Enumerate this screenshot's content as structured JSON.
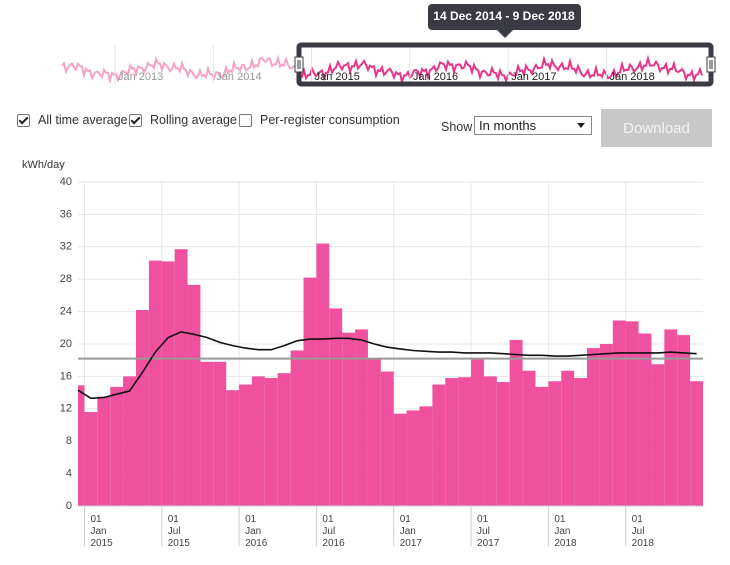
{
  "navigator": {
    "labels": [
      "Jan 2013",
      "Jan 2014",
      "Jan 2015",
      "Jan 2016",
      "Jan 2017",
      "Jan 2018"
    ],
    "range_label": "14 Dec 2014 - 9 Dec 2018"
  },
  "controls": {
    "checkboxes": [
      {
        "label": "All time average",
        "checked": true
      },
      {
        "label": "Rolling average",
        "checked": true
      },
      {
        "label": "Per-register consumption",
        "checked": false
      }
    ],
    "show_label": "Show",
    "show_value": "In months",
    "button": "Download"
  },
  "chart_data": {
    "type": "bar",
    "y_label": "kWh/day",
    "values": [
      14.9,
      11.6,
      13.5,
      14.7,
      16.0,
      24.2,
      30.3,
      30.2,
      31.7,
      27.3,
      17.8,
      17.8,
      14.3,
      15.0,
      16.0,
      15.8,
      16.4,
      19.2,
      28.2,
      32.4,
      24.4,
      21.4,
      21.8,
      18.1,
      16.6,
      11.4,
      11.8,
      12.3,
      15.0,
      15.8,
      15.9,
      18.1,
      16.0,
      15.3,
      20.5,
      16.7,
      14.7,
      15.4,
      16.7,
      15.8,
      19.5,
      20.0,
      22.9,
      22.8,
      21.3,
      17.5,
      21.8,
      21.1,
      15.4
    ],
    "color": "#ef519e",
    "rolling_average": [
      14.3,
      13.3,
      13.4,
      13.8,
      14.2,
      16.5,
      19.0,
      20.8,
      21.5,
      21.2,
      20.8,
      20.2,
      19.8,
      19.5,
      19.3,
      19.3,
      19.8,
      20.4,
      20.6,
      20.6,
      20.7,
      20.7,
      20.5,
      20.0,
      19.6,
      19.4,
      19.2,
      19.1,
      19.0,
      19.0,
      18.9,
      18.9,
      18.9,
      18.8,
      18.7,
      18.6,
      18.6,
      18.5,
      18.5,
      18.6,
      18.7,
      18.8,
      18.9,
      18.9,
      18.9,
      18.9,
      19.0,
      18.9,
      18.8
    ],
    "rolling_color": "#111111",
    "all_time_average": 18.2,
    "average_color": "#999999",
    "xlim": [
      0.5,
      49
    ],
    "xticks": [
      {
        "value": 1,
        "label": "01 Jan 2015"
      },
      {
        "value": 7,
        "label": "01 Jul 2015"
      },
      {
        "value": 13,
        "label": "01 Jan 2016"
      },
      {
        "value": 19,
        "label": "01 Jul 2016"
      },
      {
        "value": 25,
        "label": "01 Jan 2017"
      },
      {
        "value": 31,
        "label": "01 Jul 2017"
      },
      {
        "value": 37,
        "label": "01 Jan 2018"
      },
      {
        "value": 43,
        "label": "01 Jul 2018"
      }
    ],
    "ylim": [
      0,
      40
    ],
    "yticks": [
      0,
      4,
      8,
      12,
      16,
      20,
      24,
      28,
      32,
      36,
      40
    ],
    "grid": true
  }
}
